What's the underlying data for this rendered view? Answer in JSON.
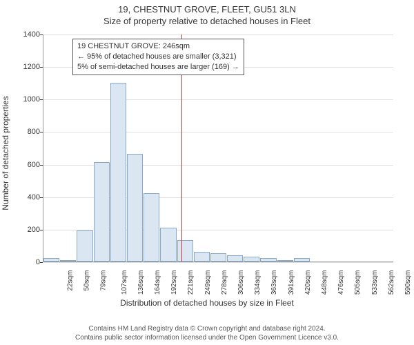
{
  "header": {
    "title": "19, CHESTNUT GROVE, FLEET, GU51 3LN",
    "subtitle": "Size of property relative to detached houses in Fleet"
  },
  "chart": {
    "type": "histogram",
    "ylabel": "Number of detached properties",
    "xlabel": "Distribution of detached houses by size in Fleet",
    "ylim": [
      0,
      1400
    ],
    "ytick_step": 200,
    "yticks": [
      0,
      200,
      400,
      600,
      800,
      1000,
      1200,
      1400
    ],
    "xticks": [
      "22sqm",
      "50sqm",
      "79sqm",
      "107sqm",
      "136sqm",
      "164sqm",
      "192sqm",
      "221sqm",
      "249sqm",
      "278sqm",
      "306sqm",
      "334sqm",
      "363sqm",
      "391sqm",
      "420sqm",
      "448sqm",
      "476sqm",
      "505sqm",
      "533sqm",
      "562sqm",
      "590sqm"
    ],
    "values": [
      20,
      8,
      190,
      610,
      1100,
      660,
      420,
      210,
      130,
      60,
      50,
      40,
      30,
      20,
      10,
      20,
      0,
      0,
      0,
      0,
      0
    ],
    "bar_fill": "#dbe6f3",
    "bar_border": "#8aa8c8",
    "grid_color": "#e0e0e0",
    "background_color": "#ffffff",
    "marker_value": 246,
    "marker_range": [
      22,
      590
    ],
    "marker_color": "#cc3333",
    "info_box": {
      "line1": "19 CHESTNUT GROVE: 246sqm",
      "line2": "← 95% of detached houses are smaller (3,321)",
      "line3": "5% of semi-detached houses are larger (169) →"
    }
  },
  "footer": {
    "line1": "Contains HM Land Registry data © Crown copyright and database right 2024.",
    "line2": "Contains public sector information licensed under the Open Government Licence v3.0."
  }
}
